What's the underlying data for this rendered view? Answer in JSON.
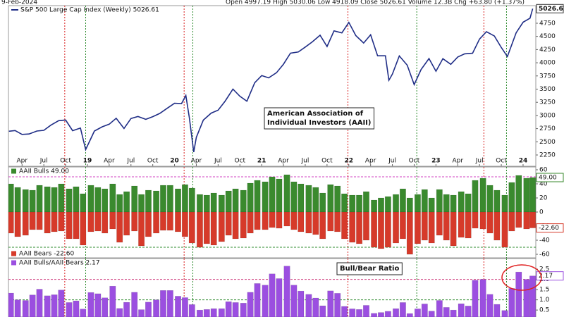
{
  "header": {
    "date": "9-Feb-2024",
    "quote": "Open 4997.19 High 5030.06 Low 4918.09 Close 5026.61 Volume 12.3B Chg +63.80 (+1.37%)"
  },
  "signal_lines": {
    "red": [
      2018.74,
      2020.11,
      2021.99,
      2023.55
    ],
    "green": [
      2018.98,
      2020.21,
      2022.78,
      2023.81
    ]
  },
  "chart_data": [
    {
      "type": "line",
      "name": "S&P 500 Large Cap Index (Weekly) 5026.61",
      "color": "#1f2d86",
      "last_value_label": "5026.61",
      "annotation": [
        "American Association of",
        "Individual Investors (AAII)"
      ],
      "xlim": [
        2018.094,
        2024.146
      ],
      "ylim": [
        2036,
        5084
      ],
      "yticks": [
        2250,
        2500,
        2750,
        3000,
        3250,
        3500,
        3750,
        4000,
        4250,
        4500,
        4750
      ],
      "xticks": [
        {
          "value": 2018.25,
          "label": "Apr"
        },
        {
          "value": 2018.5,
          "label": "Jul"
        },
        {
          "value": 2018.75,
          "label": "Oct"
        },
        {
          "value": 2019,
          "label": "19"
        },
        {
          "value": 2019.25,
          "label": "Apr"
        },
        {
          "value": 2019.5,
          "label": "Jul"
        },
        {
          "value": 2019.75,
          "label": "Oct"
        },
        {
          "value": 2020,
          "label": "20"
        },
        {
          "value": 2020.25,
          "label": "Apr"
        },
        {
          "value": 2020.5,
          "label": "Jul"
        },
        {
          "value": 2020.75,
          "label": "Oct"
        },
        {
          "value": 2021,
          "label": "21"
        },
        {
          "value": 2021.25,
          "label": "Apr"
        },
        {
          "value": 2021.5,
          "label": "Jul"
        },
        {
          "value": 2021.75,
          "label": "Oct"
        },
        {
          "value": 2022,
          "label": "22"
        },
        {
          "value": 2022.25,
          "label": "Apr"
        },
        {
          "value": 2022.5,
          "label": "Jul"
        },
        {
          "value": 2022.75,
          "label": "Oct"
        },
        {
          "value": 2023,
          "label": "23"
        },
        {
          "value": 2023.25,
          "label": "Apr"
        },
        {
          "value": 2023.5,
          "label": "Jul"
        },
        {
          "value": 2023.75,
          "label": "Oct"
        },
        {
          "value": 2024,
          "label": "24"
        }
      ],
      "x": [
        2018.1,
        2018.17,
        2018.25,
        2018.33,
        2018.42,
        2018.5,
        2018.58,
        2018.67,
        2018.75,
        2018.83,
        2018.92,
        2018.98,
        2019.08,
        2019.17,
        2019.25,
        2019.33,
        2019.42,
        2019.5,
        2019.58,
        2019.67,
        2019.75,
        2019.83,
        2019.92,
        2020.0,
        2020.08,
        2020.13,
        2020.17,
        2020.22,
        2020.25,
        2020.33,
        2020.42,
        2020.5,
        2020.58,
        2020.67,
        2020.75,
        2020.83,
        2020.92,
        2021.0,
        2021.08,
        2021.17,
        2021.25,
        2021.33,
        2021.42,
        2021.5,
        2021.58,
        2021.67,
        2021.75,
        2021.83,
        2021.92,
        2022.0,
        2022.08,
        2022.17,
        2022.25,
        2022.33,
        2022.42,
        2022.46,
        2022.5,
        2022.58,
        2022.67,
        2022.75,
        2022.83,
        2022.92,
        2023.0,
        2023.08,
        2023.17,
        2023.25,
        2023.33,
        2023.42,
        2023.5,
        2023.58,
        2023.67,
        2023.75,
        2023.82,
        2023.92,
        2024.0,
        2024.08,
        2024.11
      ],
      "values": [
        2700,
        2714,
        2640,
        2648,
        2705,
        2718,
        2816,
        2901,
        2913,
        2711,
        2760,
        2351,
        2704,
        2784,
        2834,
        2946,
        2752,
        2942,
        2980,
        2926,
        2977,
        3038,
        3141,
        3231,
        3226,
        3380,
        2954,
        2305,
        2585,
        2912,
        3044,
        3100,
        3271,
        3500,
        3363,
        3270,
        3622,
        3756,
        3714,
        3811,
        3973,
        4181,
        4204,
        4298,
        4395,
        4523,
        4308,
        4605,
        4567,
        4766,
        4516,
        4374,
        4530,
        4132,
        4132,
        3667,
        3785,
        4130,
        3955,
        3586,
        3872,
        4080,
        3840,
        4077,
        3970,
        4109,
        4169,
        4180,
        4450,
        4589,
        4508,
        4288,
        4117,
        4568,
        4770,
        4846,
        5026.61
      ]
    },
    {
      "type": "bar",
      "xlim": [
        2018.094,
        2024.146
      ],
      "ylim": [
        -65,
        64
      ],
      "yticks": [
        60,
        40,
        20,
        0,
        -20,
        -40,
        -60
      ],
      "hlines": [
        {
          "value": 50,
          "color": "#d040c0"
        },
        {
          "value": -50,
          "color": "#2e8b2e"
        }
      ],
      "x": [
        2018.12,
        2018.2,
        2018.29,
        2018.37,
        2018.45,
        2018.54,
        2018.62,
        2018.7,
        2018.79,
        2018.87,
        2018.95,
        2019.04,
        2019.12,
        2019.2,
        2019.29,
        2019.37,
        2019.45,
        2019.54,
        2019.62,
        2019.7,
        2019.79,
        2019.87,
        2019.95,
        2020.04,
        2020.12,
        2020.2,
        2020.29,
        2020.37,
        2020.45,
        2020.54,
        2020.62,
        2020.7,
        2020.79,
        2020.87,
        2020.95,
        2021.04,
        2021.12,
        2021.2,
        2021.29,
        2021.37,
        2021.45,
        2021.54,
        2021.62,
        2021.7,
        2021.79,
        2021.87,
        2021.95,
        2022.04,
        2022.12,
        2022.2,
        2022.29,
        2022.37,
        2022.45,
        2022.54,
        2022.62,
        2022.7,
        2022.79,
        2022.87,
        2022.95,
        2023.04,
        2023.12,
        2023.2,
        2023.29,
        2023.37,
        2023.45,
        2023.54,
        2023.62,
        2023.7,
        2023.79,
        2023.87,
        2023.95,
        2024.04,
        2024.11
      ],
      "series": [
        {
          "name": "AAII Bulls 49.00",
          "color": "#3a8a2e",
          "last_value_label": "49.00",
          "values": [
            40,
            35,
            32,
            31,
            38,
            36,
            35,
            40,
            33,
            36,
            26,
            38,
            35,
            33,
            40,
            25,
            29,
            37,
            25,
            31,
            30,
            38,
            38,
            33,
            39,
            34,
            25,
            24,
            27,
            24,
            30,
            33,
            31,
            41,
            45,
            43,
            50,
            47,
            53,
            43,
            40,
            38,
            35,
            27,
            39,
            37,
            26,
            24,
            24,
            29,
            17,
            20,
            22,
            25,
            33,
            20,
            25,
            32,
            20,
            32,
            25,
            24,
            29,
            26,
            45,
            48,
            38,
            31,
            24,
            42,
            52,
            48,
            49
          ]
        },
        {
          "name": "AAII Bears -22.60",
          "color": "#d63a2a",
          "last_value_label": "-22.60",
          "values": [
            -30,
            -35,
            -33,
            -25,
            -25,
            -30,
            -28,
            -27,
            -38,
            -38,
            -47,
            -28,
            -27,
            -30,
            -24,
            -43,
            -33,
            -27,
            -48,
            -35,
            -30,
            -26,
            -26,
            -28,
            -35,
            -44,
            -50,
            -45,
            -47,
            -42,
            -33,
            -38,
            -37,
            -30,
            -25,
            -25,
            -22,
            -23,
            -20,
            -25,
            -28,
            -30,
            -32,
            -38,
            -27,
            -28,
            -38,
            -43,
            -45,
            -40,
            -50,
            -52,
            -50,
            -44,
            -38,
            -60,
            -45,
            -40,
            -44,
            -33,
            -40,
            -48,
            -36,
            -37,
            -23,
            -24,
            -30,
            -40,
            -50,
            -27,
            -22,
            -24,
            -22.6
          ]
        }
      ]
    },
    {
      "type": "bar",
      "annotation": [
        "Bull/Bear Ratio"
      ],
      "xlim": [
        2018.094,
        2024.146
      ],
      "ylim": [
        0.16,
        3.02
      ],
      "yticks": [
        2.5,
        {
          "value": 2,
          "label": "2.0"
        },
        1.5,
        {
          "value": 1,
          "label": "1.0"
        },
        0.5
      ],
      "hlines": [
        {
          "value": 2,
          "color": "#d04080"
        },
        {
          "value": 1,
          "color": "#2e8b2e"
        }
      ],
      "x": [
        2018.12,
        2018.2,
        2018.29,
        2018.37,
        2018.45,
        2018.54,
        2018.62,
        2018.7,
        2018.79,
        2018.87,
        2018.95,
        2019.04,
        2019.12,
        2019.2,
        2019.29,
        2019.37,
        2019.45,
        2019.54,
        2019.62,
        2019.7,
        2019.79,
        2019.87,
        2019.95,
        2020.04,
        2020.12,
        2020.2,
        2020.29,
        2020.37,
        2020.45,
        2020.54,
        2020.62,
        2020.7,
        2020.79,
        2020.87,
        2020.95,
        2021.04,
        2021.12,
        2021.2,
        2021.29,
        2021.37,
        2021.45,
        2021.54,
        2021.62,
        2021.7,
        2021.79,
        2021.87,
        2021.95,
        2022.04,
        2022.12,
        2022.2,
        2022.29,
        2022.37,
        2022.45,
        2022.54,
        2022.62,
        2022.7,
        2022.79,
        2022.87,
        2022.95,
        2023.04,
        2023.12,
        2023.2,
        2023.29,
        2023.37,
        2023.45,
        2023.54,
        2023.62,
        2023.7,
        2023.79,
        2023.87,
        2023.95,
        2024.04,
        2024.11
      ],
      "series": [
        {
          "name": "AAII Bulls/AAII Bears 2.17",
          "color": "#9b4fe0",
          "last_value_label": "2.17",
          "values": [
            1.33,
            1.0,
            0.97,
            1.24,
            1.52,
            1.2,
            1.25,
            1.48,
            0.87,
            0.95,
            0.55,
            1.36,
            1.3,
            1.1,
            1.67,
            0.58,
            0.88,
            1.37,
            0.52,
            0.89,
            1.0,
            1.46,
            1.46,
            1.18,
            1.11,
            0.77,
            0.5,
            0.53,
            0.57,
            0.57,
            0.91,
            0.87,
            0.84,
            1.37,
            1.8,
            1.72,
            2.27,
            2.04,
            2.65,
            1.72,
            1.43,
            1.27,
            1.09,
            0.71,
            1.44,
            1.32,
            0.68,
            0.56,
            0.53,
            0.73,
            0.34,
            0.38,
            0.44,
            0.57,
            0.87,
            0.33,
            0.56,
            0.8,
            0.45,
            0.97,
            0.63,
            0.5,
            0.81,
            0.7,
            1.96,
            2.0,
            1.27,
            0.78,
            0.48,
            1.56,
            2.36,
            2.0,
            2.17
          ]
        }
      ]
    }
  ]
}
